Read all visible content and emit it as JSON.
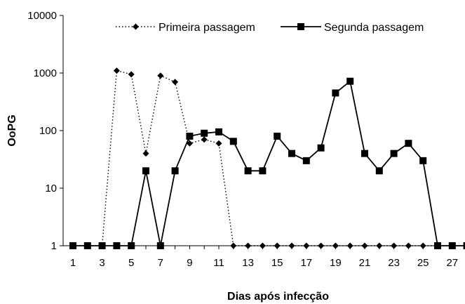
{
  "chart_data": {
    "type": "line",
    "title": "",
    "xlabel": "Dias após infecção",
    "ylabel": "OoPG",
    "yscale": "log",
    "ylim": [
      1,
      10000
    ],
    "xlim": [
      0.5,
      28
    ],
    "y_ticks": [
      1,
      10,
      100,
      1000,
      10000
    ],
    "y_tick_labels": [
      "1",
      "10",
      "100",
      "1000",
      "10000"
    ],
    "x_ticks": [
      1,
      3,
      5,
      7,
      9,
      11,
      13,
      15,
      17,
      19,
      21,
      23,
      25,
      27
    ],
    "x_tick_labels": [
      "1",
      "3",
      "5",
      "7",
      "9",
      "11",
      "13",
      "15",
      "17",
      "19",
      "21",
      "23",
      "25",
      "27"
    ],
    "grid": false,
    "legend_position": "top",
    "series": [
      {
        "name": "Primeira passagem",
        "marker": "diamond",
        "line_style": "dotted",
        "color": "#000000",
        "x": [
          1,
          2,
          3,
          4,
          5,
          6,
          7,
          8,
          9,
          10,
          11,
          12,
          13,
          14,
          15,
          16,
          17,
          18,
          19,
          20,
          21,
          22,
          23,
          24,
          25,
          26,
          27,
          28
        ],
        "values": [
          1,
          1,
          1,
          1100,
          950,
          40,
          900,
          700,
          60,
          70,
          60,
          1,
          1,
          1,
          1,
          1,
          1,
          1,
          1,
          1,
          1,
          1,
          1,
          1,
          1,
          1,
          1,
          1
        ]
      },
      {
        "name": "Segunda passagem",
        "marker": "square",
        "line_style": "solid",
        "color": "#000000",
        "x": [
          1,
          2,
          3,
          4,
          5,
          6,
          7,
          8,
          9,
          10,
          11,
          12,
          13,
          14,
          15,
          16,
          17,
          18,
          19,
          20,
          21,
          22,
          23,
          24,
          25,
          26,
          27,
          28
        ],
        "values": [
          1,
          1,
          1,
          1,
          1,
          20,
          1,
          20,
          80,
          90,
          95,
          65,
          20,
          20,
          80,
          40,
          30,
          50,
          450,
          720,
          40,
          20,
          40,
          60,
          30,
          1,
          1,
          1
        ]
      }
    ]
  }
}
